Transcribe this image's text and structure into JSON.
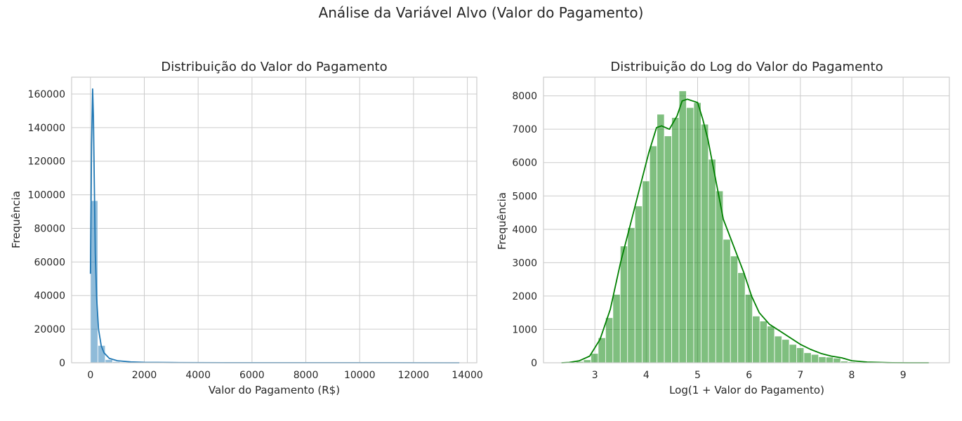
{
  "suptitle": "Análise da Variável Alvo (Valor do Pagamento)",
  "chart_data": [
    {
      "type": "bar",
      "title": "Distribuição do Valor do Pagamento",
      "xlabel": "Valor do Pagamento (R$)",
      "ylabel": "Frequência",
      "xlim": [
        -700,
        14350
      ],
      "ylim": [
        0,
        170000
      ],
      "xticks": [
        0,
        2000,
        4000,
        6000,
        8000,
        10000,
        12000,
        14000
      ],
      "xtick_labels": [
        "0",
        "2000",
        "4000",
        "6000",
        "8000",
        "10000",
        "12000",
        "14000"
      ],
      "yticks": [
        0,
        20000,
        40000,
        60000,
        80000,
        100000,
        120000,
        140000,
        160000
      ],
      "ytick_labels": [
        "0",
        "20000",
        "40000",
        "60000",
        "80000",
        "100000",
        "120000",
        "140000",
        "160000"
      ],
      "grid": true,
      "color": "#1f77b4",
      "bin_start": 0,
      "bin_width": 274,
      "values": [
        96500,
        10300,
        1900,
        700,
        350,
        200,
        120,
        80,
        60,
        45,
        35,
        28,
        22,
        18,
        15,
        12,
        10,
        8,
        7,
        6,
        5,
        5,
        4,
        4,
        3,
        3,
        3,
        2,
        2,
        2,
        2,
        2,
        1,
        1,
        1,
        1,
        1,
        1,
        1,
        1,
        1,
        1,
        1,
        1,
        1,
        1,
        1,
        1,
        1,
        1
      ],
      "kde": {
        "x": [
          0,
          40,
          80,
          110,
          140,
          180,
          230,
          300,
          400,
          500,
          700,
          1000,
          1500,
          2000,
          3000,
          5000,
          8000,
          11000,
          13700
        ],
        "y": [
          53000,
          130000,
          163000,
          145000,
          110000,
          65000,
          38000,
          20000,
          10000,
          6000,
          2600,
          1200,
          500,
          250,
          120,
          60,
          40,
          30,
          20
        ]
      }
    },
    {
      "type": "bar",
      "title": "Distribuição do Log do Valor do Pagamento",
      "xlabel": "Log(1 + Valor do Pagamento)",
      "ylabel": "Frequência",
      "xlim": [
        2.0,
        9.9
      ],
      "ylim": [
        0,
        8560
      ],
      "xticks": [
        3,
        4,
        5,
        6,
        7,
        8,
        9
      ],
      "xtick_labels": [
        "3",
        "4",
        "5",
        "6",
        "7",
        "8",
        "9"
      ],
      "yticks": [
        0,
        1000,
        2000,
        3000,
        4000,
        5000,
        6000,
        7000,
        8000
      ],
      "ytick_labels": [
        "0",
        "1000",
        "2000",
        "3000",
        "4000",
        "5000",
        "6000",
        "7000",
        "8000"
      ],
      "grid": true,
      "color": "#008000",
      "bin_start": 2.35,
      "bin_width": 0.143,
      "values": [
        5,
        15,
        40,
        90,
        280,
        750,
        1350,
        2050,
        3500,
        4050,
        4700,
        5450,
        6500,
        7450,
        6800,
        7350,
        8150,
        7650,
        7800,
        7150,
        6100,
        5150,
        3700,
        3200,
        2700,
        2050,
        1400,
        1250,
        1100,
        800,
        700,
        550,
        450,
        300,
        250,
        180,
        170,
        140,
        50,
        30,
        20,
        10,
        5,
        4,
        3,
        2,
        2,
        1,
        1,
        1
      ],
      "kde": {
        "x": [
          2.35,
          2.5,
          2.7,
          2.9,
          3.1,
          3.3,
          3.5,
          3.7,
          3.9,
          4.05,
          4.2,
          4.3,
          4.45,
          4.6,
          4.7,
          4.8,
          4.9,
          5.0,
          5.1,
          5.2,
          5.35,
          5.5,
          5.7,
          5.9,
          6.05,
          6.2,
          6.4,
          6.6,
          6.8,
          7.0,
          7.2,
          7.4,
          7.6,
          7.8,
          8.0,
          8.3,
          8.7,
          9.1,
          9.5
        ],
        "y": [
          0,
          10,
          60,
          200,
          700,
          1600,
          3000,
          4200,
          5400,
          6300,
          7050,
          7100,
          7000,
          7400,
          7850,
          7900,
          7850,
          7800,
          7300,
          6700,
          5500,
          4300,
          3500,
          2700,
          2000,
          1500,
          1150,
          950,
          750,
          550,
          400,
          280,
          200,
          150,
          60,
          20,
          5,
          1,
          0
        ]
      }
    }
  ]
}
